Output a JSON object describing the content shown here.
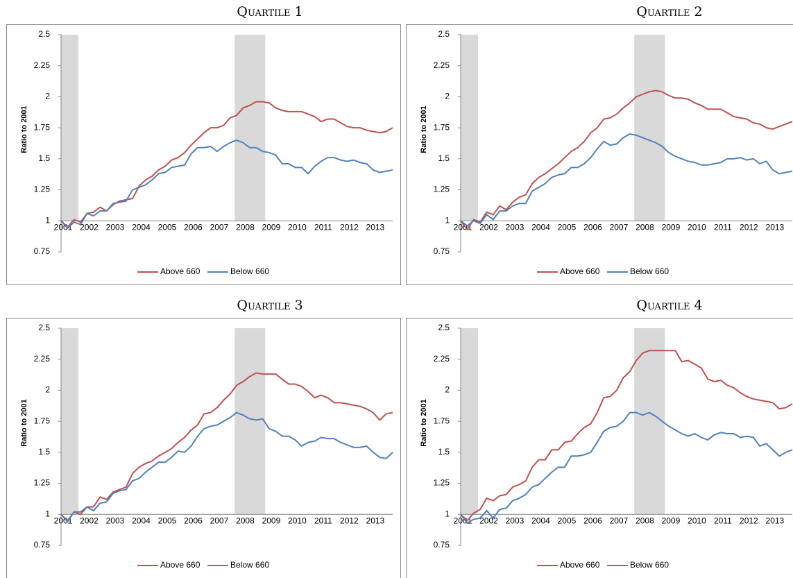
{
  "chart_data": [
    {
      "type": "line",
      "title": "Quartile 1",
      "ylabel": "Ratio to 2001",
      "categories": [
        "2001",
        null,
        null,
        null,
        "2002",
        null,
        null,
        null,
        "2003",
        null,
        null,
        null,
        "2004",
        null,
        null,
        null,
        "2005",
        null,
        null,
        null,
        "2006",
        null,
        null,
        null,
        "2007",
        null,
        null,
        null,
        "2008",
        null,
        null,
        null,
        "2009",
        null,
        null,
        null,
        "2010",
        null,
        null,
        null,
        "2011",
        null,
        null,
        null,
        "2012",
        null,
        null,
        null,
        "2013",
        null,
        null,
        null
      ],
      "series": [
        {
          "name": "Above 660",
          "color": "#c0504d",
          "values": [
            1,
            0.95,
            1.01,
            0.99,
            1.06,
            1.07,
            1.11,
            1.08,
            1.13,
            1.16,
            1.17,
            1.18,
            1.28,
            1.33,
            1.36,
            1.41,
            1.44,
            1.49,
            1.51,
            1.55,
            1.61,
            1.66,
            1.71,
            1.75,
            1.75,
            1.77,
            1.83,
            1.85,
            1.91,
            1.93,
            1.96,
            1.96,
            1.95,
            1.91,
            1.89,
            1.88,
            1.88,
            1.88,
            1.86,
            1.84,
            1.8,
            1.82,
            1.82,
            1.79,
            1.76,
            1.75,
            1.75,
            1.73,
            1.72,
            1.71,
            1.72,
            1.75
          ]
        },
        {
          "name": "Below 660",
          "color": "#4f81bd",
          "values": [
            1,
            0.94,
            0.99,
            0.97,
            1.06,
            1.04,
            1.08,
            1.08,
            1.14,
            1.15,
            1.16,
            1.25,
            1.27,
            1.29,
            1.33,
            1.38,
            1.39,
            1.43,
            1.44,
            1.45,
            1.54,
            1.59,
            1.59,
            1.6,
            1.56,
            1.6,
            1.63,
            1.65,
            1.63,
            1.59,
            1.59,
            1.56,
            1.55,
            1.53,
            1.46,
            1.46,
            1.43,
            1.43,
            1.38,
            1.44,
            1.48,
            1.51,
            1.51,
            1.49,
            1.48,
            1.49,
            1.47,
            1.46,
            1.41,
            1.39,
            1.4,
            1.41
          ]
        }
      ],
      "ylim": [
        0.75,
        2.5
      ],
      "yticks": [
        0.75,
        1,
        1.25,
        1.5,
        1.75,
        2,
        2.25,
        2.5
      ],
      "xaxis_crosses": 1,
      "shaded_spans": [
        {
          "from": 0,
          "to": 2.67
        },
        {
          "from": 26.7,
          "to": 31.4
        }
      ],
      "shade_color": "#d9d9d9",
      "legend": "bottom"
    },
    {
      "type": "line",
      "title": "Quartile 2",
      "ylabel": "Ratio to 2001",
      "categories": [
        "2001",
        null,
        null,
        null,
        "2002",
        null,
        null,
        null,
        "2003",
        null,
        null,
        null,
        "2004",
        null,
        null,
        null,
        "2005",
        null,
        null,
        null,
        "2006",
        null,
        null,
        null,
        "2007",
        null,
        null,
        null,
        "2008",
        null,
        null,
        null,
        "2009",
        null,
        null,
        null,
        "2010",
        null,
        null,
        null,
        "2011",
        null,
        null,
        null,
        "2012",
        null,
        null,
        null,
        "2013",
        null,
        null,
        null
      ],
      "series": [
        {
          "name": "Above 660",
          "color": "#c0504d",
          "values": [
            1,
            0.93,
            1.01,
            0.99,
            1.07,
            1.05,
            1.12,
            1.09,
            1.15,
            1.19,
            1.21,
            1.3,
            1.35,
            1.38,
            1.42,
            1.46,
            1.51,
            1.56,
            1.59,
            1.64,
            1.71,
            1.75,
            1.82,
            1.83,
            1.86,
            1.91,
            1.95,
            2,
            2.02,
            2.04,
            2.05,
            2.04,
            2.01,
            1.99,
            1.99,
            1.98,
            1.95,
            1.93,
            1.9,
            1.9,
            1.9,
            1.87,
            1.84,
            1.83,
            1.82,
            1.79,
            1.78,
            1.75,
            1.74,
            1.76,
            1.78,
            1.8
          ]
        },
        {
          "name": "Below 660",
          "color": "#4f81bd",
          "values": [
            1,
            0.96,
            1,
            0.98,
            1.05,
            1.01,
            1.08,
            1.08,
            1.12,
            1.14,
            1.14,
            1.24,
            1.27,
            1.3,
            1.35,
            1.37,
            1.38,
            1.43,
            1.43,
            1.46,
            1.51,
            1.58,
            1.64,
            1.61,
            1.62,
            1.67,
            1.7,
            1.69,
            1.67,
            1.65,
            1.63,
            1.6,
            1.55,
            1.52,
            1.5,
            1.48,
            1.47,
            1.45,
            1.45,
            1.46,
            1.47,
            1.5,
            1.5,
            1.51,
            1.49,
            1.5,
            1.46,
            1.48,
            1.41,
            1.38,
            1.39,
            1.4
          ]
        }
      ],
      "ylim": [
        0.75,
        2.5
      ],
      "yticks": [
        0.75,
        1,
        1.25,
        1.5,
        1.75,
        2,
        2.25,
        2.5
      ],
      "xaxis_crosses": 1,
      "shaded_spans": [
        {
          "from": 0,
          "to": 2.67
        },
        {
          "from": 26.7,
          "to": 31.4
        }
      ],
      "shade_color": "#d9d9d9",
      "legend": "bottom"
    },
    {
      "type": "line",
      "title": "Quartile 3",
      "ylabel": "Ratio to 2001",
      "categories": [
        "2001",
        null,
        null,
        null,
        "2002",
        null,
        null,
        null,
        "2003",
        null,
        null,
        null,
        "2004",
        null,
        null,
        null,
        "2005",
        null,
        null,
        null,
        "2006",
        null,
        null,
        null,
        "2007",
        null,
        null,
        null,
        "2008",
        null,
        null,
        null,
        "2009",
        null,
        null,
        null,
        "2010",
        null,
        null,
        null,
        "2011",
        null,
        null,
        null,
        "2012",
        null,
        null,
        null,
        "2013",
        null,
        null,
        null
      ],
      "series": [
        {
          "name": "Above 660",
          "color": "#c0504d",
          "values": [
            1,
            0.95,
            1.02,
            1,
            1.06,
            1.06,
            1.14,
            1.12,
            1.18,
            1.2,
            1.22,
            1.33,
            1.38,
            1.41,
            1.43,
            1.47,
            1.5,
            1.53,
            1.58,
            1.62,
            1.68,
            1.72,
            1.81,
            1.82,
            1.86,
            1.92,
            1.97,
            2.04,
            2.07,
            2.11,
            2.14,
            2.13,
            2.13,
            2.13,
            2.09,
            2.05,
            2.05,
            2.03,
            1.99,
            1.94,
            1.96,
            1.94,
            1.9,
            1.9,
            1.89,
            1.88,
            1.87,
            1.85,
            1.82,
            1.76,
            1.81,
            1.82
          ]
        },
        {
          "name": "Below 660",
          "color": "#4f81bd",
          "values": [
            1,
            0.94,
            1.02,
            1.02,
            1.06,
            1.03,
            1.09,
            1.1,
            1.17,
            1.19,
            1.2,
            1.27,
            1.29,
            1.34,
            1.38,
            1.42,
            1.42,
            1.46,
            1.51,
            1.5,
            1.55,
            1.63,
            1.69,
            1.71,
            1.72,
            1.75,
            1.78,
            1.82,
            1.8,
            1.77,
            1.76,
            1.77,
            1.69,
            1.67,
            1.63,
            1.63,
            1.6,
            1.55,
            1.58,
            1.59,
            1.62,
            1.61,
            1.61,
            1.58,
            1.56,
            1.54,
            1.54,
            1.55,
            1.5,
            1.46,
            1.45,
            1.5
          ]
        }
      ],
      "ylim": [
        0.75,
        2.5
      ],
      "yticks": [
        0.75,
        1,
        1.25,
        1.5,
        1.75,
        2,
        2.25,
        2.5
      ],
      "xaxis_crosses": 1,
      "shaded_spans": [
        {
          "from": 0,
          "to": 2.67
        },
        {
          "from": 26.7,
          "to": 31.4
        }
      ],
      "shade_color": "#d9d9d9",
      "legend": "bottom"
    },
    {
      "type": "line",
      "title": "Quartile 4",
      "ylabel": "Ratio to 2001",
      "categories": [
        "2001",
        null,
        null,
        null,
        "2002",
        null,
        null,
        null,
        "2003",
        null,
        null,
        null,
        "2004",
        null,
        null,
        null,
        "2005",
        null,
        null,
        null,
        "2006",
        null,
        null,
        null,
        "2007",
        null,
        null,
        null,
        "2008",
        null,
        null,
        null,
        "2009",
        null,
        null,
        null,
        "2010",
        null,
        null,
        null,
        "2011",
        null,
        null,
        null,
        "2012",
        null,
        null,
        null,
        "2013",
        null,
        null,
        null
      ],
      "series": [
        {
          "name": "Above 660",
          "color": "#c0504d",
          "values": [
            1,
            0.95,
            1.01,
            1.04,
            1.13,
            1.11,
            1.15,
            1.16,
            1.22,
            1.24,
            1.27,
            1.38,
            1.44,
            1.44,
            1.52,
            1.52,
            1.58,
            1.59,
            1.65,
            1.7,
            1.73,
            1.82,
            1.94,
            1.95,
            2,
            2.1,
            2.15,
            2.24,
            2.3,
            2.32,
            2.32,
            2.32,
            2.32,
            2.32,
            2.23,
            2.24,
            2.21,
            2.18,
            2.09,
            2.07,
            2.08,
            2.04,
            2.02,
            1.98,
            1.95,
            1.93,
            1.92,
            1.91,
            1.9,
            1.85,
            1.86,
            1.89
          ]
        },
        {
          "name": "Below 660",
          "color": "#4f81bd",
          "values": [
            1,
            0.93,
            0.96,
            0.97,
            1.03,
            0.97,
            1.04,
            1.05,
            1.11,
            1.13,
            1.16,
            1.22,
            1.24,
            1.29,
            1.34,
            1.38,
            1.38,
            1.47,
            1.47,
            1.48,
            1.5,
            1.58,
            1.67,
            1.7,
            1.71,
            1.75,
            1.82,
            1.82,
            1.8,
            1.82,
            1.79,
            1.75,
            1.71,
            1.68,
            1.65,
            1.63,
            1.65,
            1.62,
            1.6,
            1.64,
            1.66,
            1.65,
            1.65,
            1.62,
            1.63,
            1.62,
            1.55,
            1.57,
            1.52,
            1.47,
            1.5,
            1.52
          ]
        }
      ],
      "ylim": [
        0.75,
        2.5
      ],
      "yticks": [
        0.75,
        1,
        1.25,
        1.5,
        1.75,
        2,
        2.25,
        2.5
      ],
      "xaxis_crosses": 1,
      "shaded_spans": [
        {
          "from": 0,
          "to": 2.67
        },
        {
          "from": 26.7,
          "to": 31.4
        }
      ],
      "shade_color": "#d9d9d9",
      "legend": "bottom"
    }
  ]
}
